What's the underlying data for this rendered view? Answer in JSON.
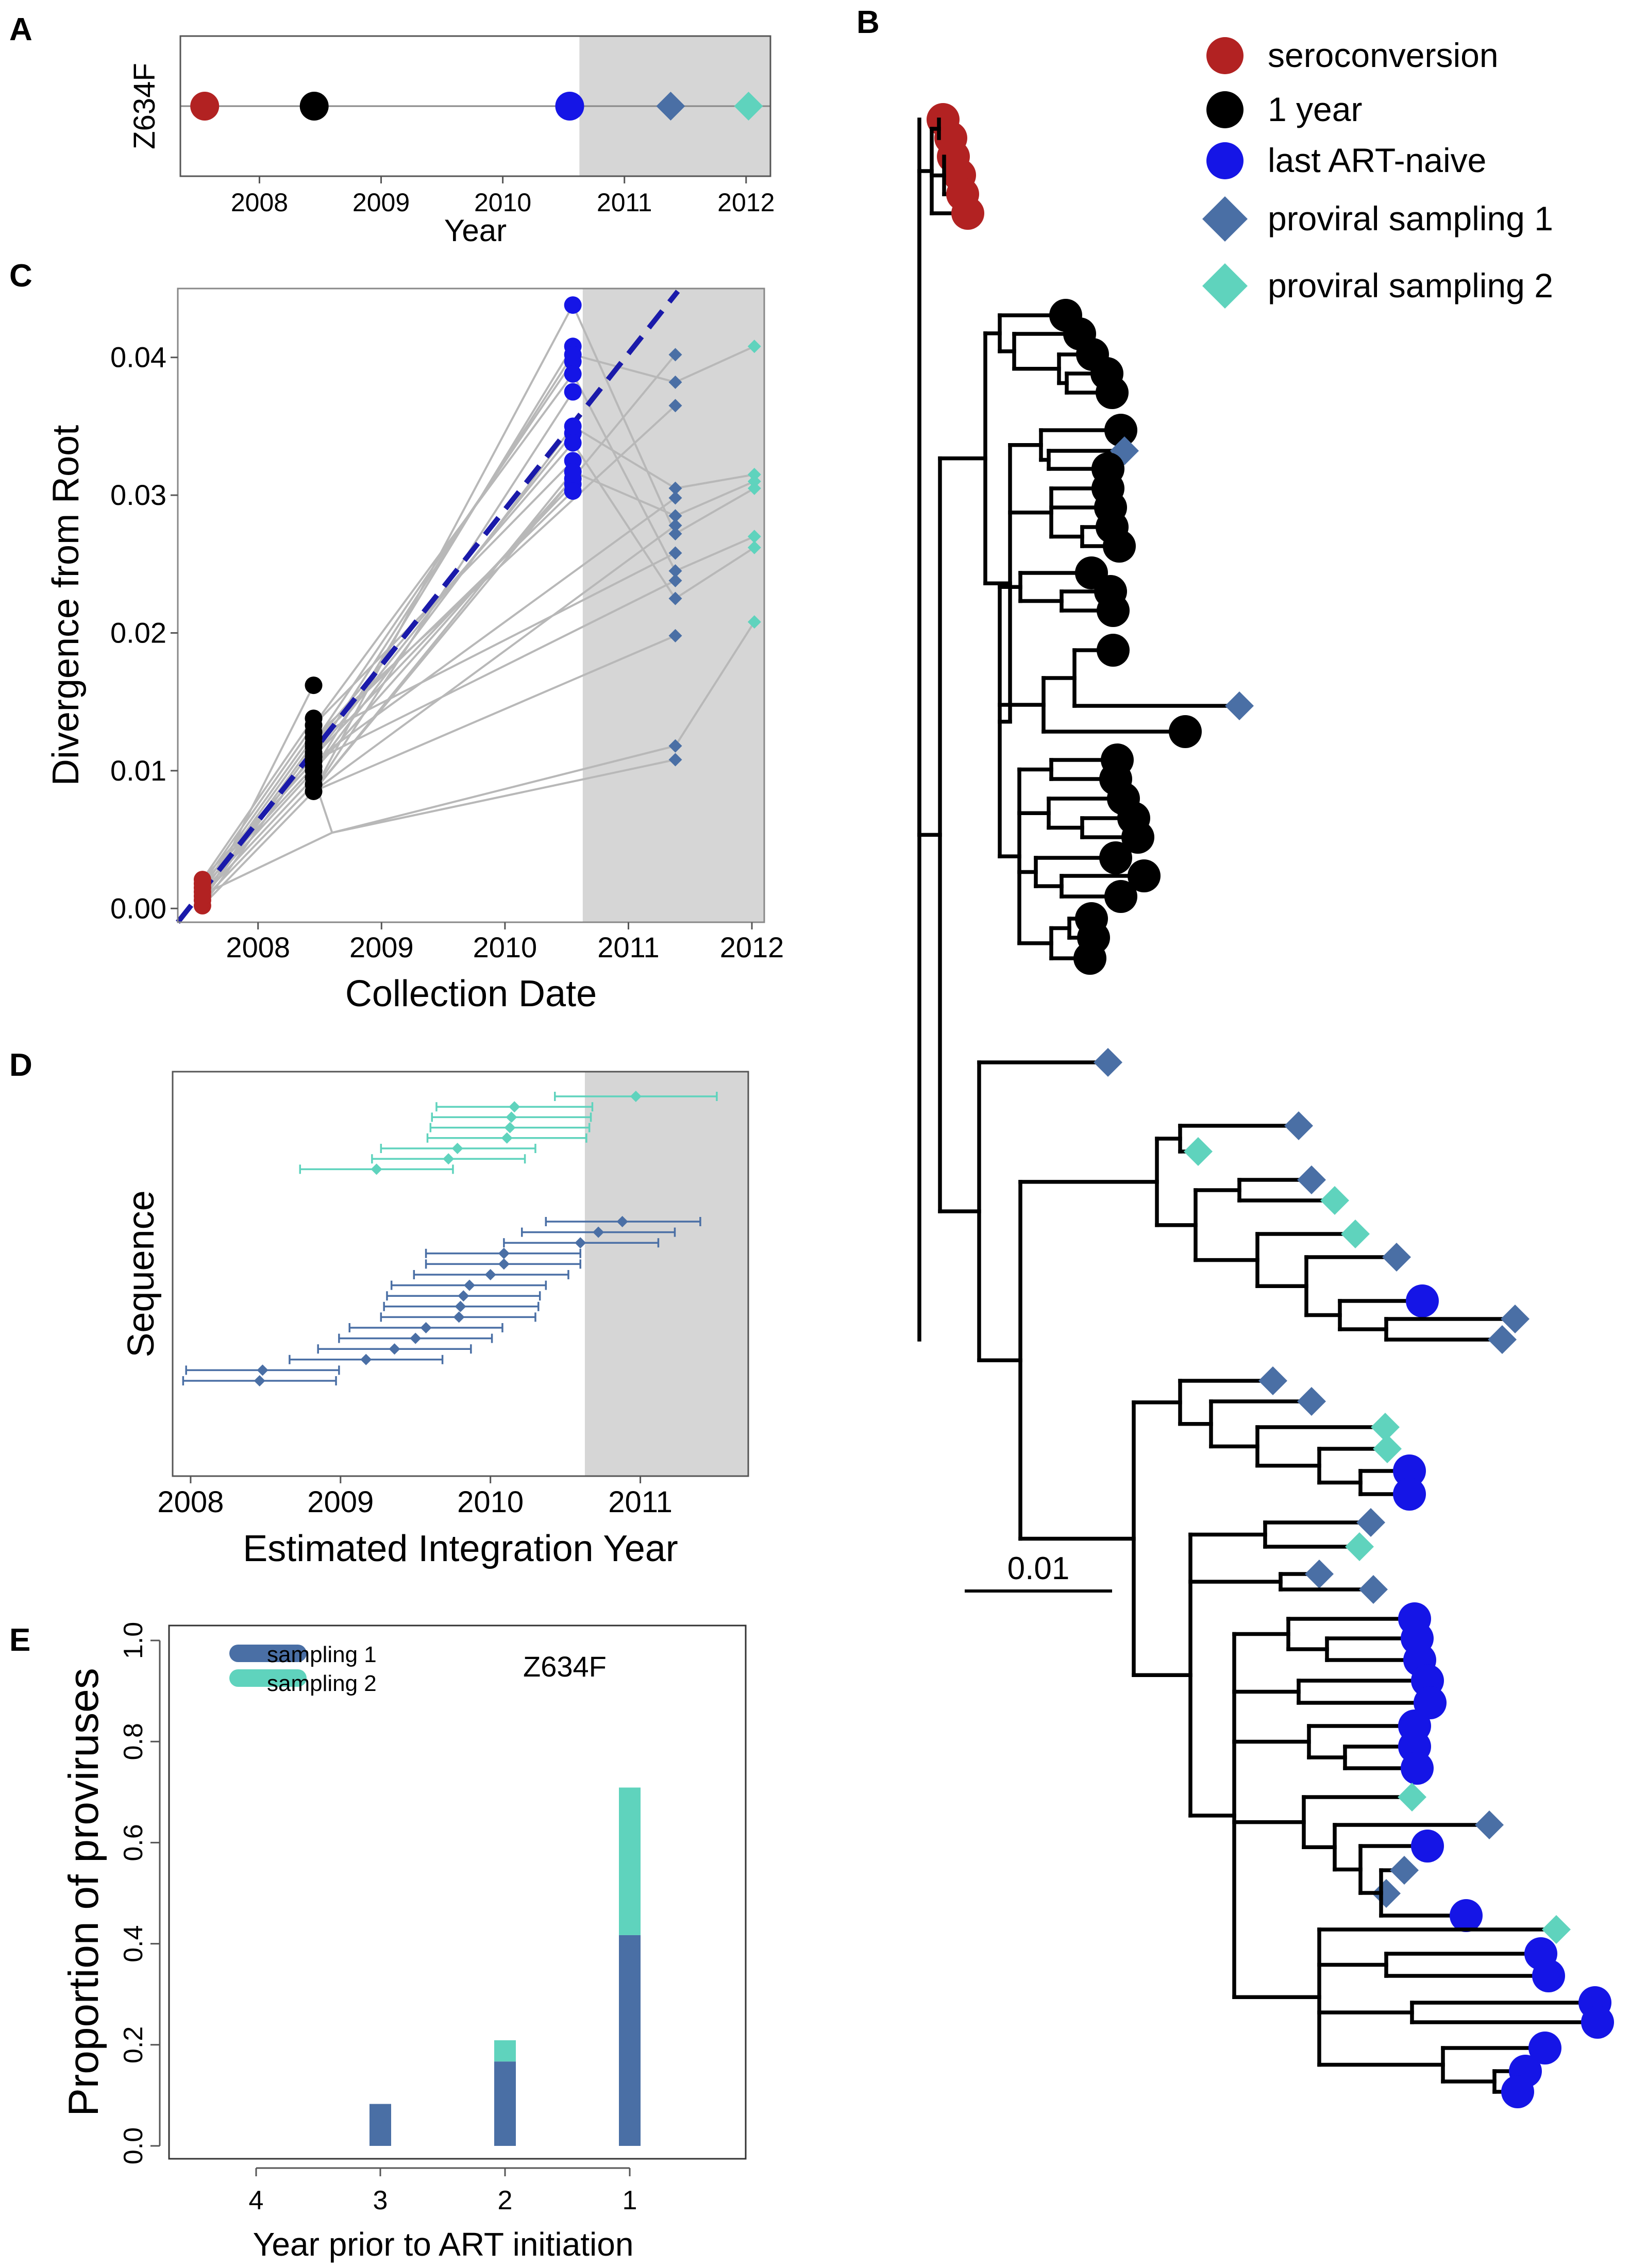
{
  "figure": {
    "panel_labels": [
      "A",
      "B",
      "C",
      "D",
      "E"
    ],
    "colors": {
      "seroconversion": "#B22222",
      "one_year": "#000000",
      "last_art_naive": "#1515E6",
      "proviral_1": "#4A6FA5",
      "proviral_2": "#5FD3BD",
      "art_shade": "#D6D6D6",
      "connector": "#B8B8B8",
      "trend": "#1A1AAA"
    }
  },
  "chart_data": [
    {
      "panel": "A",
      "type": "scatter",
      "ylabel": "Z634F",
      "xlabel": "Year",
      "xlim": [
        2007.35,
        2012.2
      ],
      "xticks": [
        "2008",
        "2009",
        "2010",
        "2011",
        "2012"
      ],
      "shade_from": 2010.63,
      "points": [
        {
          "x": 2007.55,
          "group": "seroconversion"
        },
        {
          "x": 2008.45,
          "group": "1 year"
        },
        {
          "x": 2010.55,
          "group": "last ART-naive"
        },
        {
          "x": 2011.38,
          "group": "proviral sampling 1"
        },
        {
          "x": 2012.02,
          "group": "proviral sampling 2"
        }
      ]
    },
    {
      "panel": "B",
      "type": "phylogenetic tree",
      "legend": [
        "seroconversion",
        "1 year",
        "last ART-naive",
        "proviral sampling 1",
        "proviral sampling 2"
      ],
      "scale_bar": "0.01",
      "tip_counts": {
        "seroconversion": 6,
        "1 year": 26,
        "last ART-naive": 17,
        "proviral sampling 1": 18,
        "proviral sampling 2": 8
      }
    },
    {
      "panel": "C",
      "type": "scatter",
      "title": "",
      "xlabel": "Collection Date",
      "ylabel": "Divergence from Root",
      "xlim": [
        2007.35,
        2012.1
      ],
      "ylim": [
        -0.001,
        0.045
      ],
      "xticks": [
        "2008",
        "2009",
        "2010",
        "2011",
        "2012"
      ],
      "yticks": [
        "0.00",
        "0.01",
        "0.02",
        "0.03",
        "0.04"
      ],
      "shade_from": 2010.63,
      "trend_line": {
        "x": [
          2007.35,
          2011.4
        ],
        "y": [
          -0.001,
          0.0448
        ]
      },
      "series": [
        {
          "name": "seroconversion",
          "x": 2007.55,
          "y": [
            0.0002,
            0.0006,
            0.0009,
            0.0012,
            0.0015,
            0.0018,
            0.0021
          ]
        },
        {
          "name": "1 year",
          "x": 2008.45,
          "y": [
            0.0085,
            0.009,
            0.0095,
            0.01,
            0.0103,
            0.0107,
            0.011,
            0.0113,
            0.0117,
            0.012,
            0.0124,
            0.0128,
            0.0133,
            0.0138,
            0.0162
          ]
        },
        {
          "name": "last ART-naive",
          "x": 2010.55,
          "y": [
            0.0438,
            0.0408,
            0.0402,
            0.0397,
            0.0388,
            0.0375,
            0.035,
            0.0345,
            0.0338,
            0.0325,
            0.0317,
            0.0312,
            0.0308,
            0.0303
          ]
        },
        {
          "name": "proviral sampling 1",
          "x": 2011.38,
          "y": [
            0.0402,
            0.0382,
            0.0365,
            0.0305,
            0.0298,
            0.0285,
            0.0278,
            0.0272,
            0.0258,
            0.0245,
            0.0238,
            0.0225,
            0.0198,
            0.0118,
            0.0108
          ]
        },
        {
          "name": "proviral sampling 2",
          "x": 2012.02,
          "y": [
            0.0408,
            0.0315,
            0.031,
            0.0305,
            0.027,
            0.0262,
            0.0208
          ]
        }
      ]
    },
    {
      "panel": "D",
      "type": "interval",
      "xlabel": "Estimated Integration Year",
      "ylabel": "Sequence",
      "xlim": [
        2007.88,
        2011.72
      ],
      "xticks": [
        "2008",
        "2009",
        "2010",
        "2011"
      ],
      "shade_from": 2010.63,
      "sampling2": [
        {
          "est": 2010.97,
          "lo": 2010.43,
          "hi": 2011.51
        },
        {
          "est": 2010.16,
          "lo": 2009.64,
          "hi": 2010.68
        },
        {
          "est": 2010.14,
          "lo": 2009.61,
          "hi": 2010.67
        },
        {
          "est": 2010.13,
          "lo": 2009.6,
          "hi": 2010.66
        },
        {
          "est": 2010.11,
          "lo": 2009.58,
          "hi": 2010.64
        },
        {
          "est": 2009.78,
          "lo": 2009.27,
          "hi": 2010.3
        },
        {
          "est": 2009.72,
          "lo": 2009.21,
          "hi": 2010.23
        },
        {
          "est": 2009.24,
          "lo": 2008.73,
          "hi": 2009.75
        }
      ],
      "sampling1": [
        {
          "est": 2010.88,
          "lo": 2010.37,
          "hi": 2011.4
        },
        {
          "est": 2010.72,
          "lo": 2010.21,
          "hi": 2011.23
        },
        {
          "est": 2010.6,
          "lo": 2010.09,
          "hi": 2011.12
        },
        {
          "est": 2010.09,
          "lo": 2009.57,
          "hi": 2010.6
        },
        {
          "est": 2010.09,
          "lo": 2009.57,
          "hi": 2010.6
        },
        {
          "est": 2010.0,
          "lo": 2009.49,
          "hi": 2010.52
        },
        {
          "est": 2009.86,
          "lo": 2009.34,
          "hi": 2010.37
        },
        {
          "est": 2009.82,
          "lo": 2009.31,
          "hi": 2010.33
        },
        {
          "est": 2009.8,
          "lo": 2009.29,
          "hi": 2010.32
        },
        {
          "est": 2009.79,
          "lo": 2009.27,
          "hi": 2010.3
        },
        {
          "est": 2009.57,
          "lo": 2009.06,
          "hi": 2010.08
        },
        {
          "est": 2009.5,
          "lo": 2008.99,
          "hi": 2010.01
        },
        {
          "est": 2009.36,
          "lo": 2008.85,
          "hi": 2009.87
        },
        {
          "est": 2009.17,
          "lo": 2008.66,
          "hi": 2009.68
        },
        {
          "est": 2008.48,
          "lo": 2007.97,
          "hi": 2008.99
        },
        {
          "est": 2008.46,
          "lo": 2007.95,
          "hi": 2008.97
        }
      ]
    },
    {
      "panel": "E",
      "type": "bar",
      "title": "Z634F",
      "xlabel": "Year prior to ART initiation",
      "ylabel": "Proportion of proviruses",
      "ylim": [
        0.0,
        1.0
      ],
      "yticks": [
        "0.0",
        "0.2",
        "0.4",
        "0.6",
        "0.8",
        "1.0"
      ],
      "categories": [
        "4",
        "3",
        "2",
        "1"
      ],
      "series": [
        {
          "name": "sampling 1",
          "values": [
            0.0,
            0.083,
            0.167,
            0.417
          ]
        },
        {
          "name": "sampling 2",
          "values": [
            0.0,
            0.0,
            0.042,
            0.292
          ]
        }
      ]
    }
  ]
}
